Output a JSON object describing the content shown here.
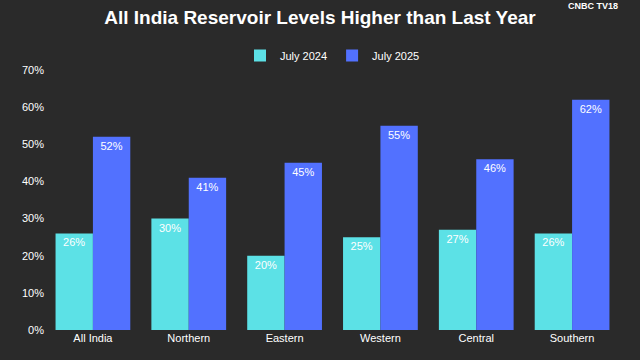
{
  "chart_data": {
    "type": "bar",
    "title": "All India Reservoir Levels Higher than Last Year",
    "categories": [
      "All India",
      "Northern",
      "Eastern",
      "Western",
      "Central",
      "Southern"
    ],
    "series": [
      {
        "name": "July 2024",
        "color": "#5ce1e6",
        "values": [
          26,
          30,
          20,
          25,
          27,
          26
        ],
        "value_labels": [
          "26%",
          "30%",
          "20%",
          "25%",
          "27%",
          "26%"
        ]
      },
      {
        "name": "July 2025",
        "color": "#5271ff",
        "values": [
          52,
          41,
          45,
          55,
          46,
          62
        ],
        "value_labels": [
          "52%",
          "41%",
          "45%",
          "55%",
          "46%",
          "62%"
        ]
      }
    ],
    "ylim": [
      0,
      70
    ],
    "yticks": [
      {
        "value": 0,
        "label": "0%"
      },
      {
        "value": 10,
        "label": "10%"
      },
      {
        "value": 20,
        "label": "20%"
      },
      {
        "value": 30,
        "label": "30%"
      },
      {
        "value": 40,
        "label": "40%"
      },
      {
        "value": 50,
        "label": "50%"
      },
      {
        "value": 60,
        "label": "60%"
      },
      {
        "value": 70,
        "label": "70%"
      }
    ],
    "grid": false,
    "legend": "top",
    "data_labels": true,
    "annotations": [
      {
        "text": "CNBC TV18"
      }
    ]
  }
}
